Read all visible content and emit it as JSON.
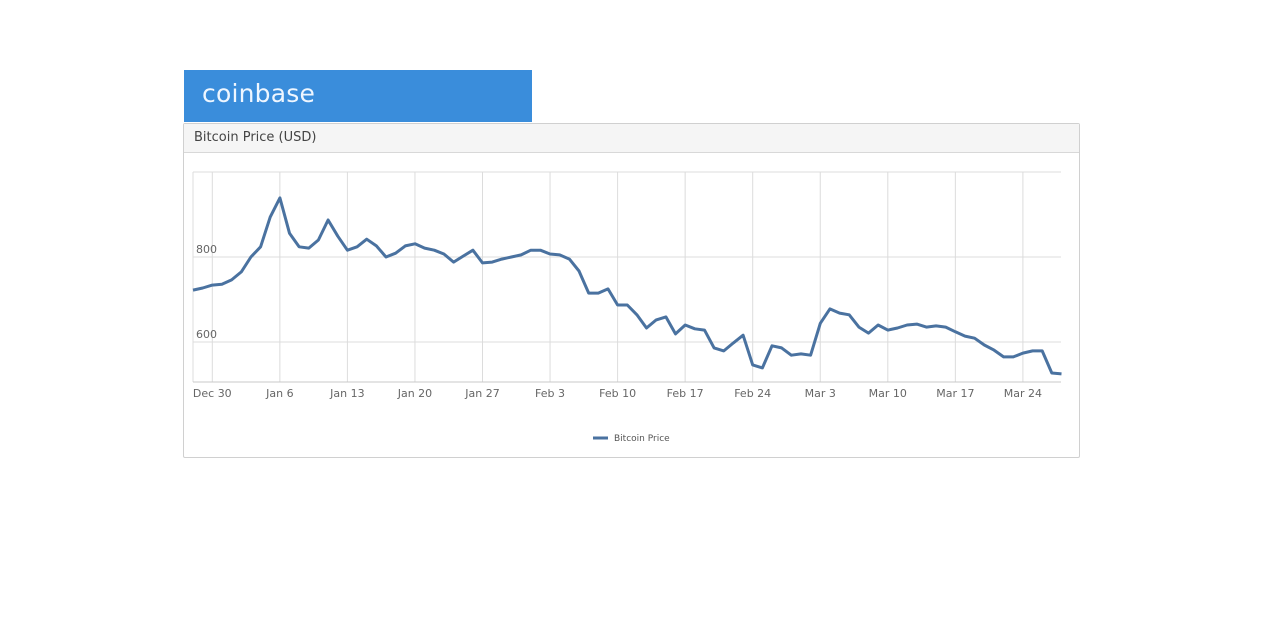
{
  "brand": {
    "name": "coinbase",
    "color": "#3a8ddb"
  },
  "panel": {
    "title": "Bitcoin Price (USD)"
  },
  "legend": {
    "label": "Bitcoin Price",
    "color": "#4a72a0"
  },
  "chart_data": {
    "type": "line",
    "title": "Bitcoin Price (USD)",
    "xlabel": "",
    "ylabel": "",
    "ylim": [
      506,
      1000
    ],
    "grid": true,
    "legend_position": "bottom-center",
    "y_ticks": [
      600,
      800
    ],
    "x_ticks": [
      "Dec 30",
      "Jan 6",
      "Jan 13",
      "Jan 20",
      "Jan 27",
      "Feb 3",
      "Feb 10",
      "Feb 17",
      "Feb 24",
      "Mar 3",
      "Mar 10",
      "Mar 17",
      "Mar 24"
    ],
    "series": [
      {
        "name": "Bitcoin Price",
        "color": "#4a72a0",
        "x": [
          "Dec 28",
          "Dec 29",
          "Dec 30",
          "Dec 31",
          "Jan 1",
          "Jan 2",
          "Jan 3",
          "Jan 4",
          "Jan 5",
          "Jan 6",
          "Jan 7",
          "Jan 8",
          "Jan 9",
          "Jan 10",
          "Jan 11",
          "Jan 12",
          "Jan 13",
          "Jan 14",
          "Jan 15",
          "Jan 16",
          "Jan 17",
          "Jan 18",
          "Jan 19",
          "Jan 20",
          "Jan 21",
          "Jan 22",
          "Jan 23",
          "Jan 24",
          "Jan 25",
          "Jan 26",
          "Jan 27",
          "Jan 28",
          "Jan 29",
          "Jan 30",
          "Jan 31",
          "Feb 1",
          "Feb 2",
          "Feb 3",
          "Feb 4",
          "Feb 5",
          "Feb 6",
          "Feb 7",
          "Feb 8",
          "Feb 9",
          "Feb 10",
          "Feb 11",
          "Feb 12",
          "Feb 13",
          "Feb 14",
          "Feb 15",
          "Feb 16",
          "Feb 17",
          "Feb 18",
          "Feb 19",
          "Feb 20",
          "Feb 21",
          "Feb 22",
          "Feb 23",
          "Feb 24",
          "Feb 25",
          "Feb 26",
          "Feb 27",
          "Feb 28",
          "Mar 1",
          "Mar 2",
          "Mar 3",
          "Mar 4",
          "Mar 5",
          "Mar 6",
          "Mar 7",
          "Mar 8",
          "Mar 9",
          "Mar 10",
          "Mar 11",
          "Mar 12",
          "Mar 13",
          "Mar 14",
          "Mar 15",
          "Mar 16",
          "Mar 17",
          "Mar 18",
          "Mar 19",
          "Mar 20",
          "Mar 21",
          "Mar 22",
          "Mar 23",
          "Mar 24",
          "Mar 25",
          "Mar 26",
          "Mar 27",
          "Mar 28"
        ],
        "values": [
          722,
          727,
          734,
          736,
          746,
          765,
          800,
          824,
          894,
          939,
          856,
          824,
          821,
          840,
          887,
          849,
          816,
          824,
          842,
          826,
          800,
          809,
          826,
          831,
          821,
          816,
          807,
          788,
          802,
          816,
          786,
          788,
          795,
          800,
          805,
          816,
          816,
          807,
          805,
          795,
          767,
          715,
          715,
          725,
          687,
          687,
          664,
          633,
          652,
          659,
          619,
          640,
          631,
          628,
          586,
          579,
          598,
          616,
          546,
          539,
          591,
          586,
          569,
          572,
          569,
          644,
          678,
          668,
          664,
          635,
          621,
          640,
          628,
          633,
          640,
          642,
          635,
          638,
          635,
          624,
          614,
          609,
          593,
          581,
          565,
          565,
          574,
          579,
          579,
          527,
          525
        ]
      }
    ]
  }
}
